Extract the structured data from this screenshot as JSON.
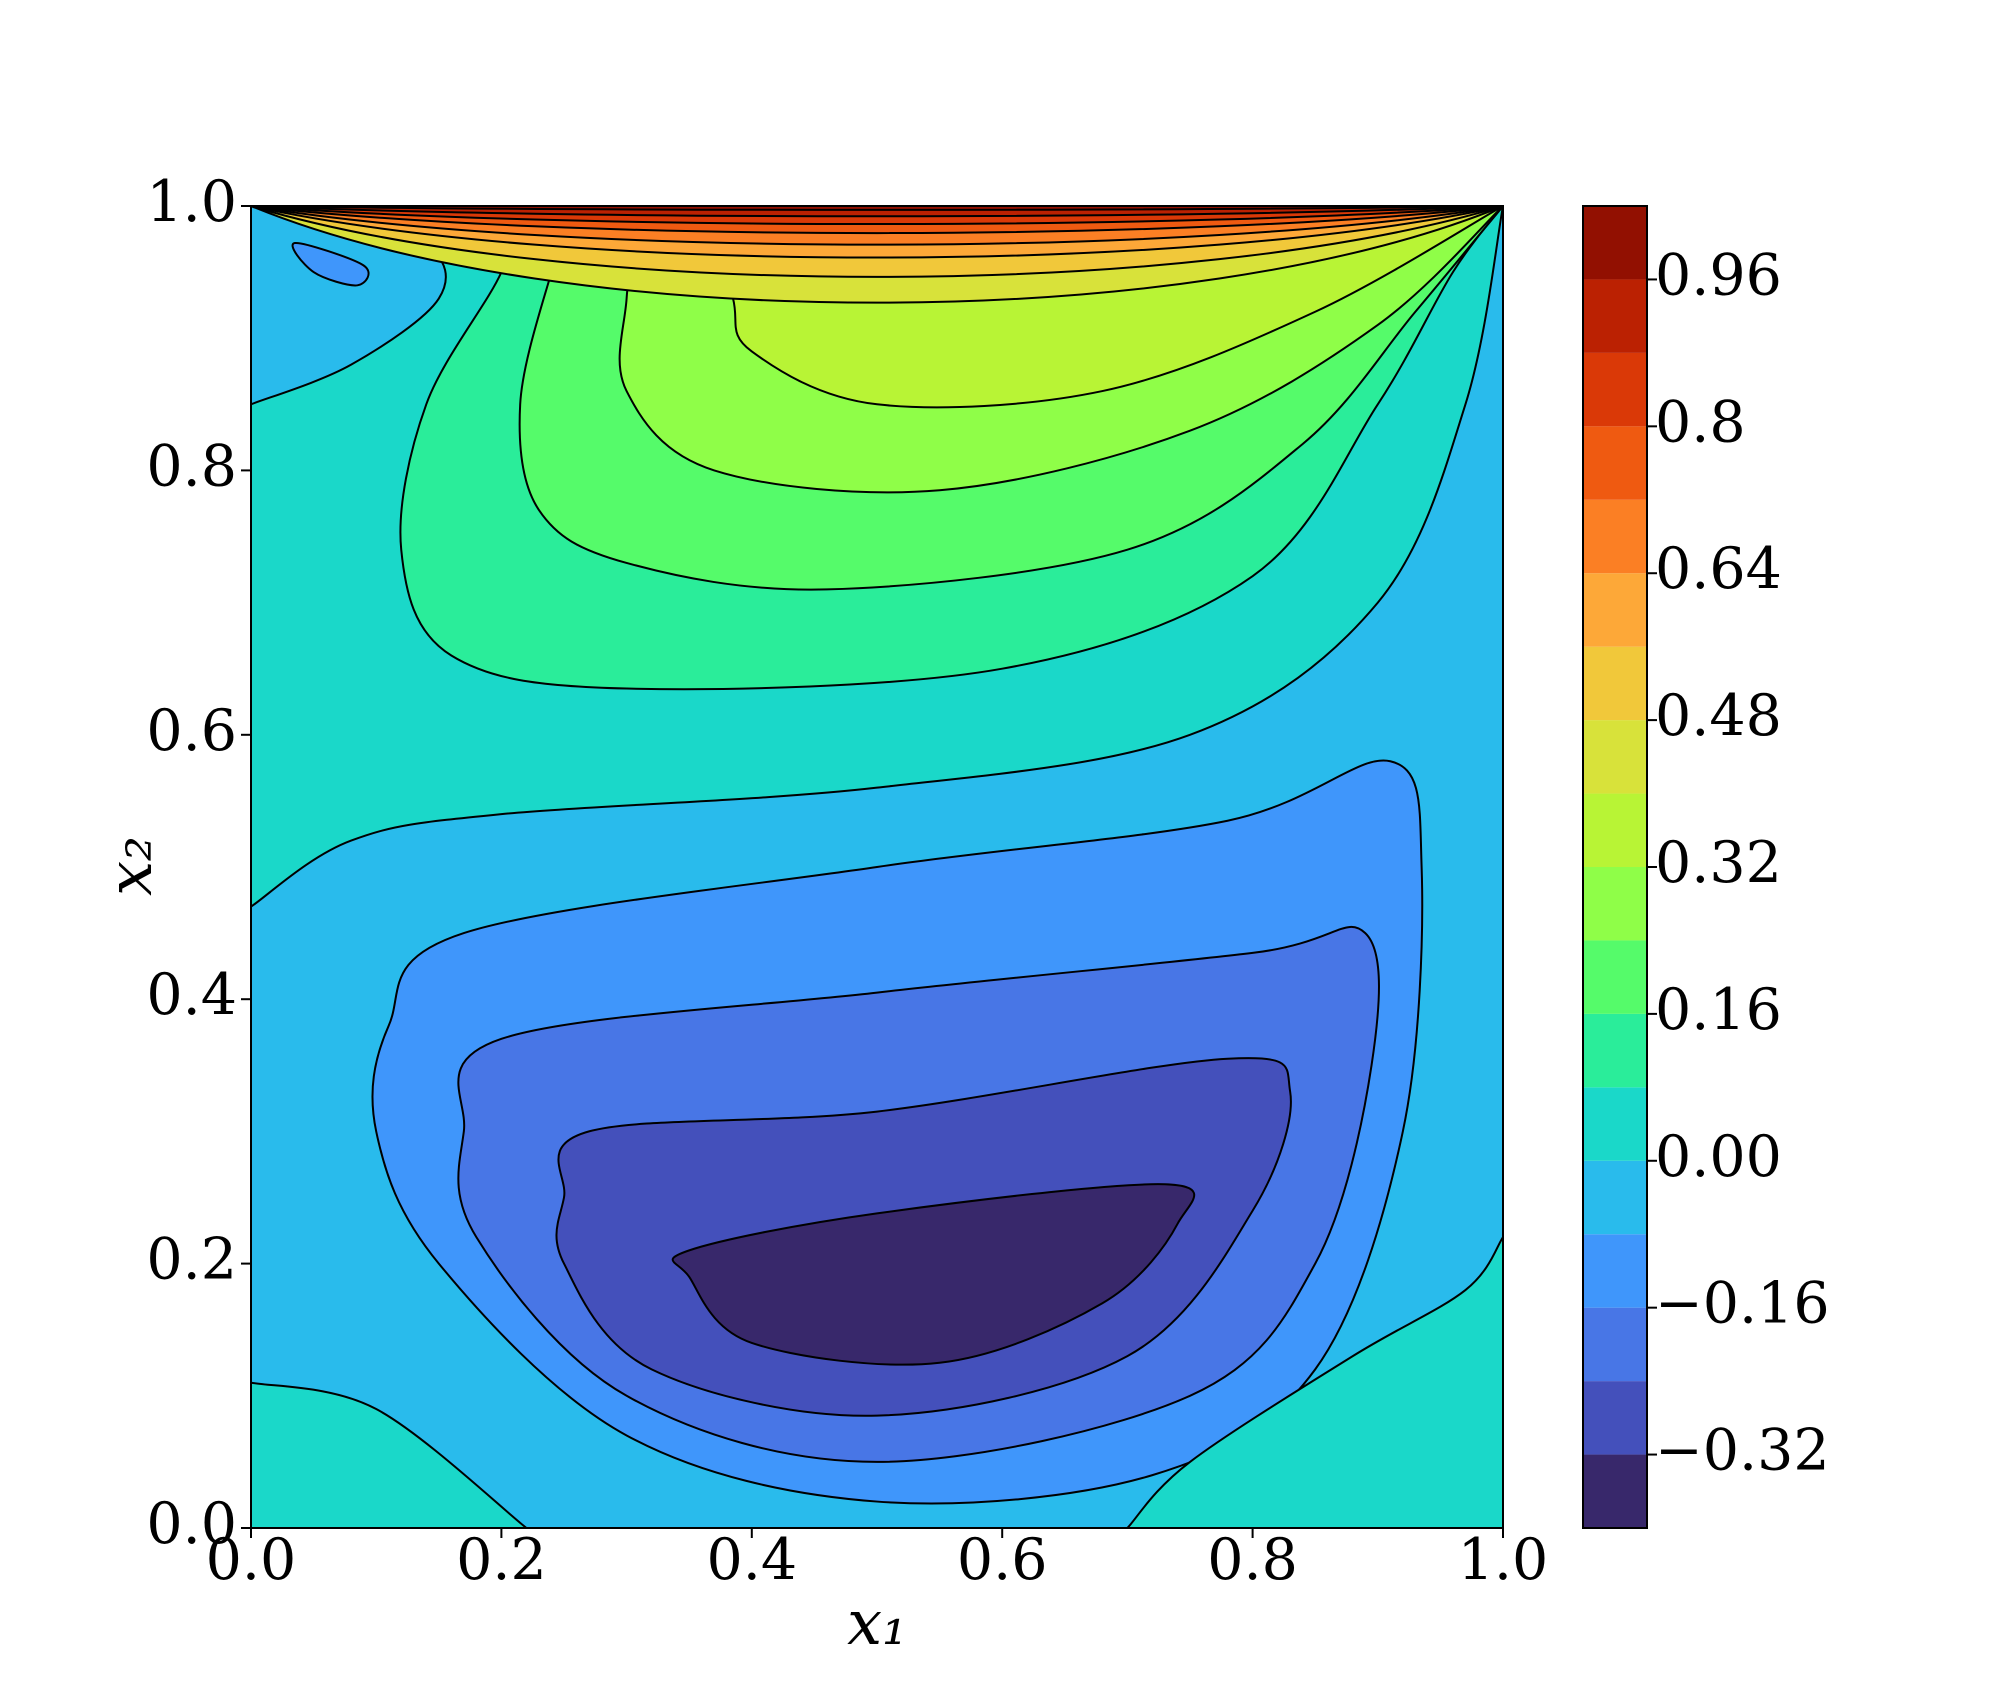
{
  "chart_data": {
    "type": "contour",
    "xlabel": "x₁",
    "ylabel": "x₂",
    "xlim": [
      0,
      1
    ],
    "ylim": [
      0,
      1
    ],
    "xticks": [
      {
        "value": 0,
        "label": "0.0"
      },
      0.2,
      0.4,
      0.6,
      0.8,
      {
        "value": 1,
        "label": "1.0"
      }
    ],
    "yticks": [
      {
        "value": 0,
        "label": "0.0"
      },
      0.2,
      0.4,
      0.6,
      0.8,
      {
        "value": 1,
        "label": "1.0"
      }
    ],
    "levels": [
      -0.4,
      -0.32,
      -0.24,
      -0.16,
      -0.08,
      0,
      0.08,
      0.16,
      0.24,
      0.32,
      0.4,
      0.48,
      0.56,
      0.64,
      0.72,
      0.8,
      0.88,
      0.96,
      1.04
    ],
    "colors": [
      "#38286b",
      "#4450bb",
      "#4876e6",
      "#3f96fb",
      "#29bbec",
      "#1ad8c9",
      "#2aed9a",
      "#55fb6a",
      "#8ffe48",
      "#b8f435",
      "#d8e23a",
      "#f1c83a",
      "#fda838",
      "#fb7f24",
      "#ef5a11",
      "#da3907",
      "#bb2102",
      "#921001"
    ],
    "colorbar_ticks": [
      {
        "value": -0.32,
        "label": "−0.32"
      },
      {
        "value": -0.16,
        "label": "−0.16"
      },
      {
        "value": 0,
        "label": "0.00"
      },
      0.16,
      0.32,
      0.48,
      0.64,
      0.8,
      0.96
    ]
  }
}
